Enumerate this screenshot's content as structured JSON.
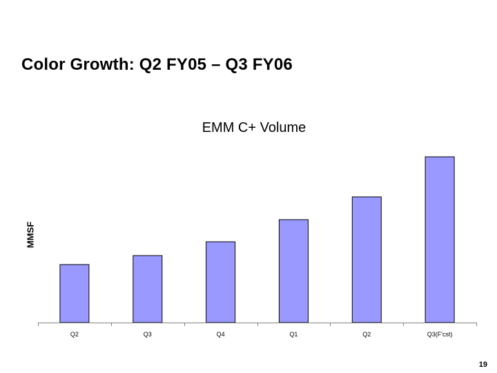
{
  "slide": {
    "title": "Color Growth:  Q2 FY05 – Q3 FY06",
    "page_number": "19"
  },
  "chart_data": {
    "type": "bar",
    "title": "EMM C+ Volume",
    "xlabel": "",
    "ylabel": "MMSF",
    "categories": [
      "Q2",
      "Q3",
      "Q4",
      "Q1",
      "Q2",
      "Q3(F'cst)"
    ],
    "values": [
      84,
      97,
      117,
      149,
      182,
      240
    ],
    "ylim": [
      0,
      260
    ],
    "grid": false,
    "legend": "none",
    "bar_color": "#9999ff",
    "bar_stroke": "#000000"
  }
}
